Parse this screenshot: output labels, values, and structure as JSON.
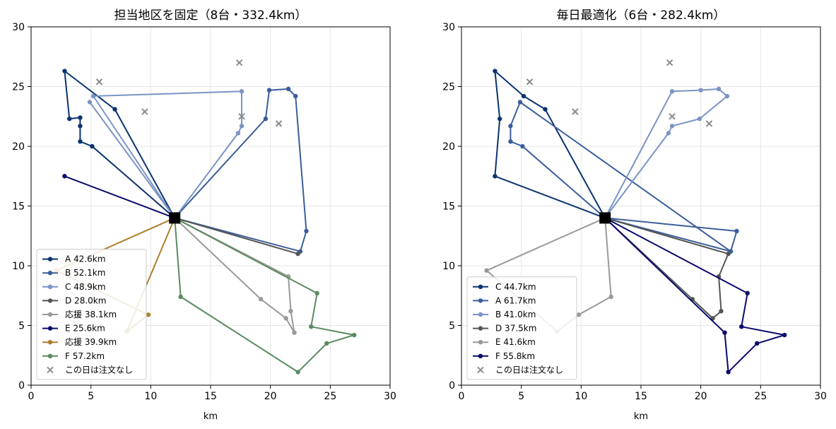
{
  "chart_data": [
    {
      "type": "line",
      "title": "担当地区を固定（8台・332.4km）",
      "xlabel": "km",
      "ylabel": "",
      "xlim": [
        0,
        30
      ],
      "ylim": [
        0,
        30
      ],
      "xticks": [
        "0",
        "5",
        "10",
        "15",
        "20",
        "25",
        "30"
      ],
      "yticks": [
        "0",
        "5",
        "10",
        "15",
        "20",
        "25",
        "30"
      ],
      "grid": true,
      "legend_position": "lower-left",
      "depot": {
        "x": 12,
        "y": 14
      },
      "series": [
        {
          "name": "A 42.6km",
          "color": "#0b3370",
          "points": [
            [
              12,
              14
            ],
            [
              5.1,
              20.0
            ],
            [
              4.1,
              20.4
            ],
            [
              4.1,
              21.7
            ],
            [
              4.1,
              22.4
            ],
            [
              3.2,
              22.3
            ],
            [
              2.8,
              26.3
            ],
            [
              7.0,
              23.1
            ],
            [
              12,
              14
            ]
          ]
        },
        {
          "name": "B 52.1km",
          "color": "#3b5e9a",
          "points": [
            [
              12,
              14
            ],
            [
              19.6,
              22.3
            ],
            [
              19.9,
              24.7
            ],
            [
              21.5,
              24.8
            ],
            [
              22.1,
              24.2
            ],
            [
              23.0,
              12.9
            ],
            [
              22.5,
              11.2
            ],
            [
              12,
              14
            ]
          ]
        },
        {
          "name": "C 48.9km",
          "color": "#7a94c4",
          "points": [
            [
              12,
              14
            ],
            [
              5.2,
              24.2
            ],
            [
              17.6,
              24.6
            ],
            [
              17.6,
              21.7
            ],
            [
              17.3,
              21.1
            ],
            [
              12,
              14
            ],
            [
              4.9,
              23.7
            ],
            [
              12,
              14
            ]
          ]
        },
        {
          "name": "D 28.0km",
          "color": "#555555",
          "points": [
            [
              12,
              14
            ],
            [
              22.3,
              11.0
            ],
            [
              12,
              14
            ]
          ]
        },
        {
          "name": "応援 38.1km",
          "color": "#999999",
          "points": [
            [
              12,
              14
            ],
            [
              19.2,
              7.2
            ],
            [
              21.3,
              5.6
            ],
            [
              22.0,
              4.4
            ],
            [
              21.7,
              6.2
            ],
            [
              21.5,
              9.1
            ],
            [
              12,
              14
            ]
          ]
        },
        {
          "name": "E 25.6km",
          "color": "#0a0a6e",
          "points": [
            [
              12,
              14
            ],
            [
              2.8,
              17.5
            ],
            [
              12,
              14
            ]
          ]
        },
        {
          "name": "応援 39.9km",
          "color": "#b07e2e",
          "points": [
            [
              12,
              14
            ],
            [
              2.1,
              9.6
            ],
            [
              9.8,
              5.9
            ],
            [
              8.0,
              4.5
            ],
            [
              12,
              14
            ]
          ]
        },
        {
          "name": "F 57.2km",
          "color": "#5a8a61",
          "points": [
            [
              12,
              14
            ],
            [
              12.5,
              7.4
            ],
            [
              22.3,
              1.1
            ],
            [
              24.7,
              3.5
            ],
            [
              27.0,
              4.2
            ],
            [
              23.4,
              4.9
            ],
            [
              23.9,
              7.7
            ],
            [
              12,
              14
            ]
          ]
        }
      ],
      "no_order": {
        "name": "この日は注文なし",
        "color": "#8c8c8c",
        "points": [
          [
            5.7,
            25.4
          ],
          [
            9.5,
            22.9
          ],
          [
            17.4,
            27.0
          ],
          [
            17.6,
            22.5
          ],
          [
            20.7,
            21.9
          ]
        ]
      }
    },
    {
      "type": "line",
      "title": "毎日最適化（6台・282.4km）",
      "xlabel": "km",
      "ylabel": "",
      "xlim": [
        0,
        30
      ],
      "ylim": [
        0,
        30
      ],
      "xticks": [
        "0",
        "5",
        "10",
        "15",
        "20",
        "25",
        "30"
      ],
      "yticks": [
        "0",
        "5",
        "10",
        "15",
        "20",
        "25",
        "30"
      ],
      "grid": true,
      "legend_position": "lower-left",
      "depot": {
        "x": 12,
        "y": 14
      },
      "series": [
        {
          "name": "C 44.7km",
          "color": "#0b3370",
          "points": [
            [
              12,
              14
            ],
            [
              7.0,
              23.1
            ],
            [
              5.2,
              24.2
            ],
            [
              2.8,
              26.3
            ],
            [
              3.2,
              22.3
            ],
            [
              2.8,
              17.5
            ],
            [
              12,
              14
            ]
          ]
        },
        {
          "name": "A 61.7km",
          "color": "#3b5e9a",
          "points": [
            [
              12,
              14
            ],
            [
              23.0,
              12.9
            ],
            [
              22.5,
              11.2
            ],
            [
              12,
              14
            ],
            [
              5.1,
              20.0
            ],
            [
              4.1,
              20.4
            ],
            [
              4.1,
              21.7
            ],
            [
              4.9,
              23.7
            ],
            [
              22.5,
              11.2
            ]
          ]
        },
        {
          "name": "B 41.0km",
          "color": "#7a94c4",
          "points": [
            [
              12,
              14
            ],
            [
              17.6,
              24.6
            ],
            [
              20.0,
              24.7
            ],
            [
              21.5,
              24.8
            ],
            [
              22.2,
              24.2
            ],
            [
              19.9,
              22.3
            ],
            [
              17.6,
              21.7
            ],
            [
              17.3,
              21.1
            ],
            [
              12,
              14
            ]
          ]
        },
        {
          "name": "D 37.5km",
          "color": "#555555",
          "points": [
            [
              12,
              14
            ],
            [
              22.3,
              11.0
            ],
            [
              21.5,
              9.1
            ],
            [
              21.7,
              6.2
            ],
            [
              21.0,
              5.6
            ],
            [
              19.3,
              7.2
            ],
            [
              12,
              14
            ]
          ]
        },
        {
          "name": "E 41.6km",
          "color": "#999999",
          "points": [
            [
              12,
              14
            ],
            [
              2.1,
              9.6
            ],
            [
              8.0,
              4.5
            ],
            [
              9.8,
              5.9
            ],
            [
              12.5,
              7.4
            ],
            [
              12,
              14
            ]
          ]
        },
        {
          "name": "F 55.8km",
          "color": "#0a0a6e",
          "points": [
            [
              12,
              14
            ],
            [
              23.9,
              7.7
            ],
            [
              23.4,
              4.9
            ],
            [
              27.0,
              4.2
            ],
            [
              24.7,
              3.5
            ],
            [
              22.3,
              1.1
            ],
            [
              22.0,
              4.4
            ],
            [
              12,
              14
            ]
          ]
        }
      ],
      "no_order": {
        "name": "この日は注文なし",
        "color": "#8c8c8c",
        "points": [
          [
            5.7,
            25.4
          ],
          [
            9.5,
            22.9
          ],
          [
            17.4,
            27.0
          ],
          [
            17.6,
            22.5
          ],
          [
            20.7,
            21.9
          ]
        ]
      }
    }
  ]
}
